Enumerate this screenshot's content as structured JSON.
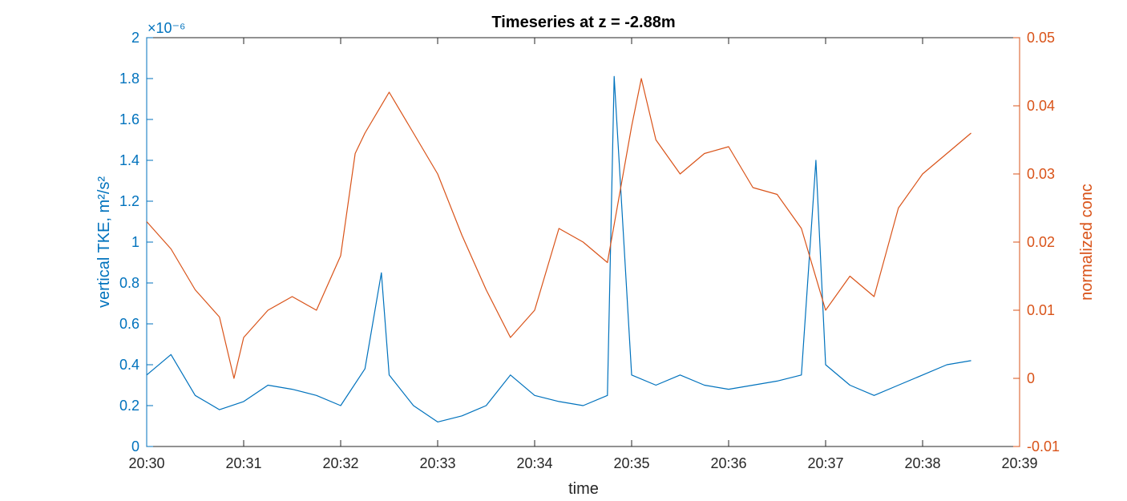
{
  "chart_data": {
    "type": "line",
    "title": "Timeseries at z = -2.88m",
    "xlabel": "time",
    "ylabel_left": "vertical TKE, m²/s²",
    "ylabel_right": "normalized conc",
    "left_multiplier": "×10⁻⁶",
    "x_range": [
      "20:30",
      "20:39"
    ],
    "x_ticks": [
      "20:30",
      "20:31",
      "20:32",
      "20:33",
      "20:34",
      "20:35",
      "20:36",
      "20:37",
      "20:38",
      "20:39"
    ],
    "y_left_range": [
      0,
      2
    ],
    "y_left_ticks": [
      "0",
      "0.2",
      "0.4",
      "0.6",
      "0.8",
      "1",
      "1.2",
      "1.4",
      "1.6",
      "1.8",
      "2"
    ],
    "y_right_range": [
      -0.01,
      0.05
    ],
    "y_right_ticks": [
      "-0.01",
      "0",
      "0.01",
      "0.02",
      "0.03",
      "0.04",
      "0.05"
    ],
    "grid": false,
    "series": [
      {
        "axis": "left",
        "color": "#0072BD",
        "x_minutes": [
          0.0,
          0.25,
          0.5,
          0.75,
          1.0,
          1.25,
          1.5,
          1.75,
          2.0,
          2.25,
          2.42,
          2.5,
          2.75,
          3.0,
          3.25,
          3.5,
          3.75,
          4.0,
          4.25,
          4.5,
          4.75,
          4.82,
          5.0,
          5.25,
          5.5,
          5.75,
          6.0,
          6.25,
          6.5,
          6.75,
          6.9,
          7.0,
          7.25,
          7.5,
          7.75,
          8.0,
          8.25,
          8.5
        ],
        "values": [
          0.35,
          0.45,
          0.25,
          0.18,
          0.22,
          0.3,
          0.28,
          0.25,
          0.2,
          0.38,
          0.85,
          0.35,
          0.2,
          0.12,
          0.15,
          0.2,
          0.35,
          0.25,
          0.22,
          0.2,
          0.25,
          1.81,
          0.35,
          0.3,
          0.35,
          0.3,
          0.28,
          0.3,
          0.32,
          0.35,
          1.4,
          0.4,
          0.3,
          0.25,
          0.3,
          0.35,
          0.4,
          0.42
        ]
      },
      {
        "axis": "right",
        "color": "#D95319",
        "x_minutes": [
          0.0,
          0.25,
          0.5,
          0.75,
          0.9,
          1.0,
          1.25,
          1.5,
          1.75,
          2.0,
          2.15,
          2.25,
          2.5,
          2.75,
          3.0,
          3.25,
          3.5,
          3.75,
          4.0,
          4.25,
          4.5,
          4.75,
          5.0,
          5.1,
          5.25,
          5.5,
          5.75,
          6.0,
          6.25,
          6.5,
          6.75,
          7.0,
          7.25,
          7.5,
          7.75,
          8.0,
          8.25,
          8.5
        ],
        "values": [
          0.023,
          0.019,
          0.013,
          0.009,
          0.0,
          0.006,
          0.01,
          0.012,
          0.01,
          0.018,
          0.033,
          0.036,
          0.042,
          0.036,
          0.03,
          0.021,
          0.013,
          0.006,
          0.01,
          0.022,
          0.02,
          0.017,
          0.037,
          0.044,
          0.035,
          0.03,
          0.033,
          0.034,
          0.028,
          0.027,
          0.022,
          0.01,
          0.015,
          0.012,
          0.025,
          0.03,
          0.033,
          0.036
        ]
      }
    ]
  }
}
